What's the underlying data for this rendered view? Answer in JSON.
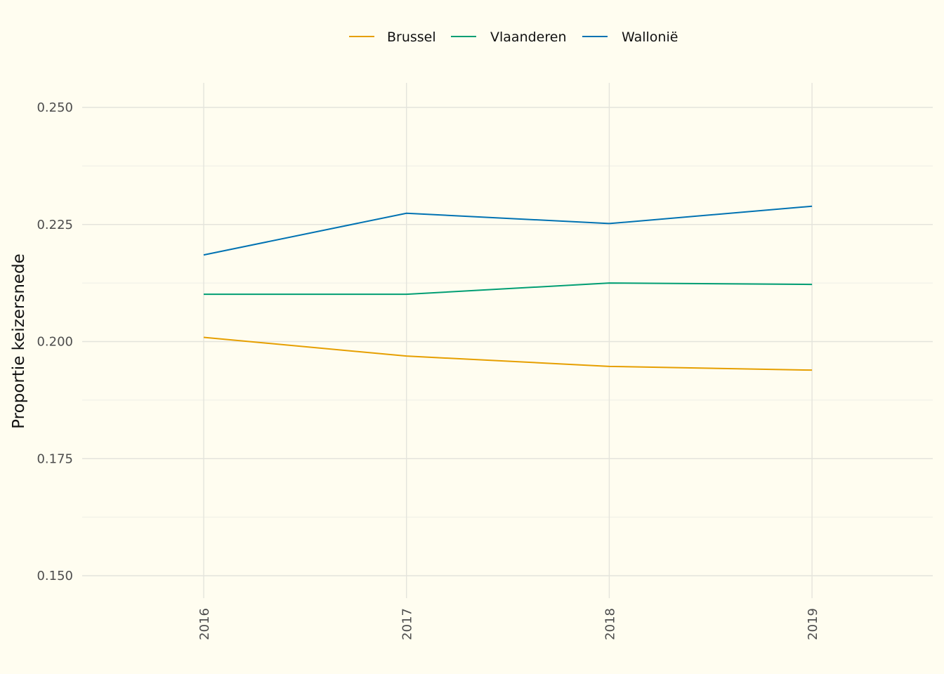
{
  "chart_data": {
    "type": "line",
    "title": "",
    "xlabel": "",
    "ylabel": "Proportie keizersnede",
    "x": [
      "2016",
      "2017",
      "2018",
      "2019"
    ],
    "ylim": [
      0.145,
      0.255
    ],
    "yticks": [
      "0.150",
      "0.175",
      "0.200",
      "0.225",
      "0.250"
    ],
    "grid": true,
    "legend_position": "top-center",
    "series": [
      {
        "name": "Brussel",
        "color": "#E69F00",
        "values": [
          0.2009,
          0.1969,
          0.1947,
          0.1939
        ]
      },
      {
        "name": "Vlaanderen",
        "color": "#009E73",
        "values": [
          0.2101,
          0.2101,
          0.2125,
          0.2122
        ]
      },
      {
        "name": "Wallonië",
        "color": "#0072B2",
        "values": [
          0.2185,
          0.2274,
          0.2252,
          0.2289
        ]
      }
    ]
  }
}
